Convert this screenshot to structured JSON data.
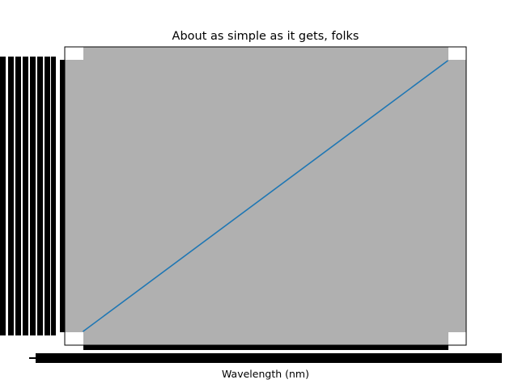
{
  "chart_data": {
    "type": "line",
    "title": "About as simple as it gets, folks",
    "xlabel": "Wavelength (nm)",
    "ylabel": "",
    "x": [
      0,
      1
    ],
    "series": [
      {
        "values": [
          0,
          1
        ],
        "color": "#1f77b4"
      }
    ],
    "xlim": [
      -0.05,
      1.05
    ],
    "ylim": [
      -0.05,
      1.05
    ],
    "background_color": "#b0b0b0",
    "grid": false,
    "legend": "none"
  }
}
